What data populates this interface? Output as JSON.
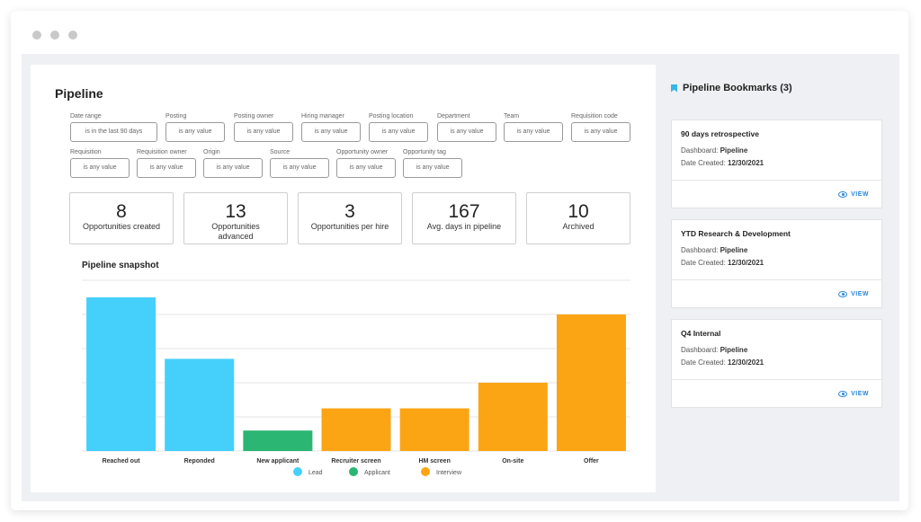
{
  "page": {
    "title": "Pipeline"
  },
  "filters_row1": [
    {
      "label": "Date range",
      "value": "is in the last 90 days"
    },
    {
      "label": "Posting",
      "value": "is any value"
    },
    {
      "label": "Posting owner",
      "value": "is any value"
    },
    {
      "label": "Hiring manager",
      "value": "is any value"
    },
    {
      "label": "Posting location",
      "value": "is any value"
    },
    {
      "label": "Department",
      "value": "is any value"
    },
    {
      "label": "Team",
      "value": "is any value"
    },
    {
      "label": "Requisition code",
      "value": "is any value"
    }
  ],
  "filters_row2": [
    {
      "label": "Requisition",
      "value": "is any value"
    },
    {
      "label": "Requisition owner",
      "value": "is any value"
    },
    {
      "label": "Origin",
      "value": "is any value"
    },
    {
      "label": "Source",
      "value": "is any value"
    },
    {
      "label": "Opportunity owner",
      "value": "is any value"
    },
    {
      "label": "Opportunity tag",
      "value": "is any value"
    }
  ],
  "stats": [
    {
      "value": "8",
      "label": "Opportunities created"
    },
    {
      "value": "13",
      "label": "Opportunities advanced"
    },
    {
      "value": "3",
      "label": "Opportunities per hire"
    },
    {
      "value": "167",
      "label": "Avg. days in pipeline"
    },
    {
      "value": "10",
      "label": "Archived"
    }
  ],
  "chart_data": {
    "type": "bar",
    "title": "Pipeline snapshot",
    "categories": [
      "Reached out",
      "Reponded",
      "New applicant",
      "Recruiter screen",
      "HM screen",
      "On-site",
      "Offer"
    ],
    "values": [
      9.0,
      5.4,
      1.2,
      2.5,
      2.5,
      4.0,
      8.0
    ],
    "groups": [
      "Lead",
      "Lead",
      "Applicant",
      "Interview",
      "Interview",
      "Interview",
      "Interview"
    ],
    "legend": [
      {
        "name": "Lead",
        "color": "#45d0fb"
      },
      {
        "name": "Applicant",
        "color": "#2bb673"
      },
      {
        "name": "Interview",
        "color": "#fba515"
      }
    ],
    "ylim": [
      0,
      10
    ],
    "grid": true,
    "xlabel": "",
    "ylabel": ""
  },
  "sidebar": {
    "title": "Pipeline Bookmarks (3)",
    "dashboard_label": "Dashboard:",
    "date_label": "Date Created:",
    "view_label": "VIEW",
    "bookmarks": [
      {
        "title": "90 days retrospective",
        "dashboard": "Pipeline",
        "date": "12/30/2021"
      },
      {
        "title": "YTD Research & Development",
        "dashboard": "Pipeline",
        "date": "12/30/2021"
      },
      {
        "title": "Q4 Internal",
        "dashboard": "Pipeline",
        "date": "12/30/2021"
      }
    ]
  }
}
